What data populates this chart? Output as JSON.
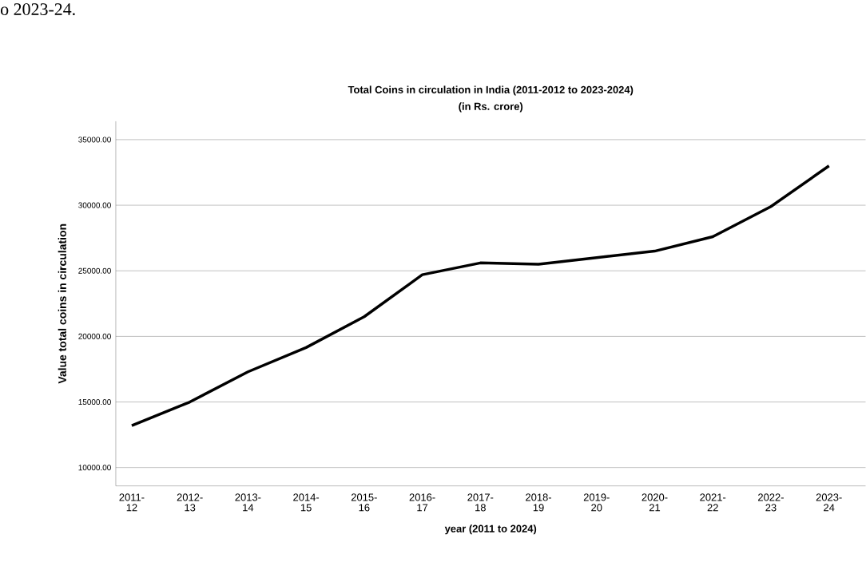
{
  "chart_data": {
    "type": "line",
    "title": "Total Coins in circulation in India (2011-2012 to 2023-2024)",
    "subtitle": "(in Rs. crore)",
    "xlabel": "year (2011 to 2024)",
    "ylabel": "Value total coins in circulation",
    "annotations": [
      "o 2023-24."
    ],
    "categories": [
      "2011-12",
      "2012-13",
      "2013-14",
      "2014-15",
      "2015-16",
      "2016-17",
      "2017-18",
      "2018-19",
      "2019-20",
      "2020-21",
      "2021-22",
      "2022-23",
      "2023-24"
    ],
    "series": [
      {
        "color": "#000000",
        "values": [
          13200,
          15000,
          17300,
          19150,
          21500,
          24700,
          25600,
          25500,
          26000,
          26500,
          27600,
          29900,
          33000
        ]
      }
    ],
    "ylim": [
      8600,
      36400
    ],
    "yticks": [
      {
        "value": 10000,
        "label": "10000.00"
      },
      {
        "value": 15000,
        "label": "15000.00"
      },
      {
        "value": 20000,
        "label": "20000.00"
      },
      {
        "value": 25000,
        "label": "25000.00"
      },
      {
        "value": 30000,
        "label": "30000.00"
      },
      {
        "value": 35000,
        "label": "35000.00"
      }
    ],
    "grid": "y",
    "marker": "none",
    "line_style": "solid"
  }
}
